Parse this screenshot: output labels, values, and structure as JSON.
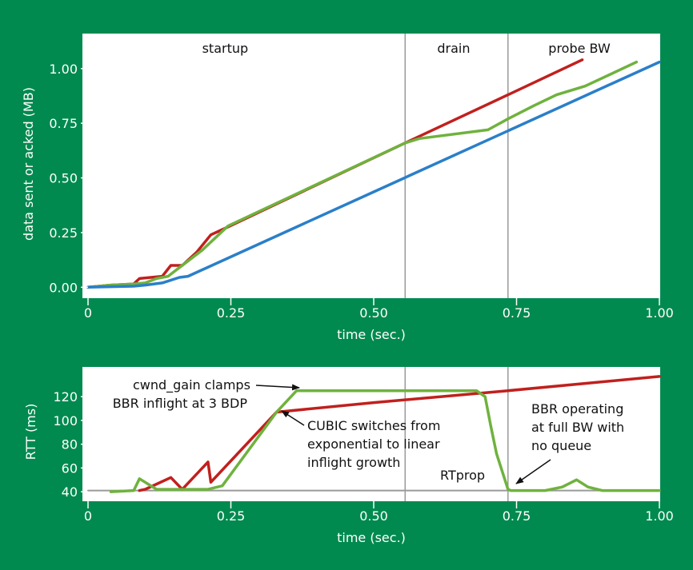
{
  "colors": {
    "background": "#008a4f",
    "plot_bg": "#ffffff",
    "cubic": "#c0201e",
    "bbr": "#6fb23e",
    "acked": "#2a7fc9",
    "rtprop": "#9a9a9a",
    "phase_line": "#9a9a9a"
  },
  "chart_data": [
    {
      "type": "line",
      "xlabel": "time (sec.)",
      "ylabel": "data sent or acked (MB)",
      "xlim": [
        0,
        1.0
      ],
      "ylim": [
        -0.05,
        1.16
      ],
      "x_ticks": [
        0,
        0.25,
        0.5,
        0.75,
        1.0
      ],
      "x_tick_labels": [
        "0",
        "0.25",
        "0.50",
        "0.75",
        "1.00"
      ],
      "y_ticks": [
        0,
        0.25,
        0.5,
        0.75,
        1.0
      ],
      "y_tick_labels": [
        "0.00",
        "0.25",
        "0.50",
        "0.75",
        "1.00"
      ],
      "phases": [
        {
          "label": "startup",
          "x_label": 0.24
        },
        {
          "label": "drain",
          "x": 0.555,
          "x_label": 0.64
        },
        {
          "label": "probe BW",
          "x": 0.735,
          "x_label": 0.86
        }
      ],
      "series": [
        {
          "key": "cubic",
          "color": "#c0201e",
          "points": [
            [
              0,
              0
            ],
            [
              0.04,
              0.01
            ],
            [
              0.08,
              0.015
            ],
            [
              0.09,
              0.04
            ],
            [
              0.13,
              0.05
            ],
            [
              0.145,
              0.1
            ],
            [
              0.165,
              0.1
            ],
            [
              0.19,
              0.16
            ],
            [
              0.215,
              0.24
            ],
            [
              0.24,
              0.27
            ],
            [
              0.555,
              0.66
            ],
            [
              0.735,
              0.88
            ],
            [
              0.865,
              1.04
            ]
          ]
        },
        {
          "key": "bbr",
          "color": "#6fb23e",
          "points": [
            [
              0,
              0
            ],
            [
              0.04,
              0.01
            ],
            [
              0.08,
              0.015
            ],
            [
              0.1,
              0.02
            ],
            [
              0.12,
              0.04
            ],
            [
              0.14,
              0.05
            ],
            [
              0.16,
              0.09
            ],
            [
              0.2,
              0.17
            ],
            [
              0.245,
              0.28
            ],
            [
              0.555,
              0.66
            ],
            [
              0.58,
              0.68
            ],
            [
              0.7,
              0.72
            ],
            [
              0.735,
              0.77
            ],
            [
              0.78,
              0.83
            ],
            [
              0.82,
              0.88
            ],
            [
              0.87,
              0.92
            ],
            [
              0.96,
              1.03
            ]
          ]
        },
        {
          "key": "acked",
          "color": "#2a7fc9",
          "points": [
            [
              0,
              0
            ],
            [
              0.08,
              0.005
            ],
            [
              0.1,
              0.01
            ],
            [
              0.13,
              0.02
            ],
            [
              0.16,
              0.045
            ],
            [
              0.175,
              0.05
            ],
            [
              1.0,
              1.03
            ]
          ]
        }
      ]
    },
    {
      "type": "line",
      "xlabel": "time (sec.)",
      "ylabel": "RTT (ms)",
      "xlim": [
        0,
        1.0
      ],
      "ylim": [
        32,
        145
      ],
      "x_ticks": [
        0,
        0.25,
        0.5,
        0.75,
        1.0
      ],
      "x_tick_labels": [
        "0",
        "0.25",
        "0.50",
        "0.75",
        "1.00"
      ],
      "y_ticks": [
        40,
        60,
        80,
        100,
        120
      ],
      "y_tick_labels": [
        "40",
        "60",
        "80",
        "100",
        "120"
      ],
      "phase_lines": [
        0.555,
        0.735
      ],
      "series": [
        {
          "key": "rtprop",
          "color": "#9a9a9a",
          "points": [
            [
              0,
              41
            ],
            [
              1.0,
              41
            ]
          ]
        },
        {
          "key": "cubic",
          "color": "#c0201e",
          "points": [
            [
              0.09,
              41
            ],
            [
              0.1,
              42
            ],
            [
              0.145,
              52
            ],
            [
              0.165,
              42
            ],
            [
              0.21,
              65
            ],
            [
              0.215,
              48
            ],
            [
              0.33,
              107
            ],
            [
              0.5,
              115
            ],
            [
              0.735,
              125
            ],
            [
              1.0,
              137
            ]
          ]
        },
        {
          "key": "bbr",
          "color": "#6fb23e",
          "points": [
            [
              0.04,
              40
            ],
            [
              0.08,
              41
            ],
            [
              0.09,
              51
            ],
            [
              0.12,
              42
            ],
            [
              0.21,
              42
            ],
            [
              0.235,
              45
            ],
            [
              0.33,
              107
            ],
            [
              0.365,
              125
            ],
            [
              0.68,
              125
            ],
            [
              0.695,
              120
            ],
            [
              0.705,
              95
            ],
            [
              0.715,
              72
            ],
            [
              0.735,
              42
            ],
            [
              0.74,
              41
            ],
            [
              0.8,
              41
            ],
            [
              0.83,
              44
            ],
            [
              0.855,
              50
            ],
            [
              0.875,
              44
            ],
            [
              0.9,
              41
            ],
            [
              1.0,
              41
            ]
          ]
        }
      ],
      "annotations": [
        {
          "lines": [
            "cwnd_gain clamps",
            "BBR inflight at 3 BDP"
          ]
        },
        {
          "lines": [
            "CUBIC switches from",
            "exponential to linear",
            "inflight growth"
          ]
        },
        {
          "lines": [
            "RTprop"
          ]
        },
        {
          "lines": [
            "BBR operating",
            "at full BW with",
            "no queue"
          ]
        }
      ]
    }
  ]
}
